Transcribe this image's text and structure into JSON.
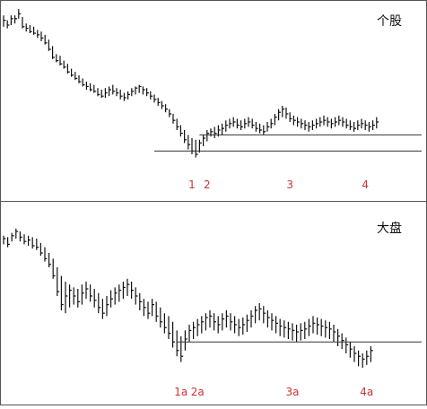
{
  "colors": {
    "price": "#111111",
    "frame": "#555555",
    "reference_line": "#333333",
    "label": "#cc3333"
  },
  "chart_data": [
    {
      "type": "ohlc",
      "title": "个股",
      "x_axis": "bar index (unlabeled)",
      "y_axis": "price (unlabeled, relative 0-100)",
      "ylim": [
        0,
        100
      ],
      "bars": [
        [
          10,
          96,
          89,
          93
        ],
        [
          11,
          93,
          88,
          90
        ],
        [
          12,
          96,
          90,
          94
        ],
        [
          13,
          96,
          91,
          94
        ],
        [
          14,
          100,
          94,
          97
        ],
        [
          15,
          95,
          88,
          89
        ],
        [
          16,
          91,
          86,
          88
        ],
        [
          17,
          90,
          85,
          86
        ],
        [
          18,
          89,
          84,
          85
        ],
        [
          19,
          87,
          82,
          84
        ],
        [
          20,
          86,
          80,
          82
        ],
        [
          21,
          84,
          78,
          79
        ],
        [
          22,
          81,
          74,
          75
        ],
        [
          23,
          77,
          69,
          70
        ],
        [
          24,
          72,
          67,
          68
        ],
        [
          25,
          71,
          65,
          66
        ],
        [
          26,
          68,
          63,
          64
        ],
        [
          27,
          66,
          60,
          61
        ],
        [
          28,
          63,
          58,
          59
        ],
        [
          29,
          61,
          56,
          57
        ],
        [
          30,
          59,
          54,
          55
        ],
        [
          31,
          57,
          52,
          53
        ],
        [
          32,
          55,
          50,
          52
        ],
        [
          33,
          54,
          49,
          50
        ],
        [
          34,
          53,
          48,
          49
        ],
        [
          35,
          51,
          46,
          47
        ],
        [
          36,
          50,
          45,
          46
        ],
        [
          37,
          51,
          45,
          48
        ],
        [
          38,
          52,
          46,
          50
        ],
        [
          39,
          53,
          47,
          49
        ],
        [
          40,
          51,
          46,
          48
        ],
        [
          41,
          50,
          44,
          46
        ],
        [
          42,
          48,
          43,
          45
        ],
        [
          43,
          49,
          44,
          47
        ],
        [
          44,
          51,
          46,
          49
        ],
        [
          45,
          52,
          47,
          51
        ],
        [
          46,
          53,
          48,
          52
        ],
        [
          47,
          52,
          47,
          50
        ],
        [
          48,
          51,
          46,
          48
        ],
        [
          49,
          49,
          44,
          46
        ],
        [
          50,
          47,
          42,
          44
        ],
        [
          51,
          45,
          40,
          42
        ],
        [
          52,
          43,
          38,
          40
        ],
        [
          53,
          41,
          36,
          38
        ],
        [
          54,
          38,
          33,
          35
        ],
        [
          55,
          35,
          29,
          31
        ],
        [
          56,
          32,
          25,
          27
        ],
        [
          57,
          28,
          21,
          23
        ],
        [
          58,
          25,
          17,
          19
        ],
        [
          59,
          22,
          13,
          16
        ],
        [
          60,
          20,
          10,
          12
        ],
        [
          61,
          19,
          8,
          10
        ],
        [
          62,
          19,
          11,
          17
        ],
        [
          63,
          22,
          15,
          20
        ],
        [
          64,
          25,
          18,
          23
        ],
        [
          65,
          26,
          21,
          24
        ],
        [
          66,
          27,
          20,
          23
        ],
        [
          67,
          28,
          21,
          25
        ],
        [
          68,
          29,
          22,
          26
        ],
        [
          69,
          31,
          24,
          28
        ],
        [
          70,
          32,
          26,
          29
        ],
        [
          71,
          33,
          27,
          30
        ],
        [
          72,
          32,
          26,
          28
        ],
        [
          73,
          31,
          25,
          27
        ],
        [
          74,
          32,
          26,
          29
        ],
        [
          75,
          33,
          27,
          30
        ],
        [
          76,
          32,
          26,
          28
        ],
        [
          77,
          30,
          24,
          26
        ],
        [
          78,
          29,
          23,
          25
        ],
        [
          79,
          28,
          22,
          24
        ],
        [
          80,
          30,
          24,
          27
        ],
        [
          81,
          32,
          26,
          29
        ],
        [
          82,
          35,
          28,
          33
        ],
        [
          83,
          38,
          31,
          36
        ],
        [
          84,
          40,
          33,
          38
        ],
        [
          85,
          39,
          32,
          35
        ],
        [
          86,
          36,
          30,
          32
        ],
        [
          87,
          34,
          28,
          31
        ],
        [
          88,
          33,
          27,
          30
        ],
        [
          89,
          32,
          26,
          29
        ],
        [
          90,
          31,
          25,
          28
        ],
        [
          91,
          30,
          24,
          27
        ],
        [
          92,
          31,
          25,
          28
        ],
        [
          93,
          32,
          26,
          29
        ],
        [
          94,
          33,
          27,
          30
        ],
        [
          95,
          34,
          28,
          31
        ],
        [
          96,
          33,
          27,
          30
        ],
        [
          97,
          32,
          26,
          29
        ],
        [
          98,
          33,
          27,
          30
        ],
        [
          99,
          34,
          28,
          31
        ],
        [
          100,
          33,
          27,
          30
        ],
        [
          101,
          32,
          26,
          28
        ],
        [
          102,
          31,
          25,
          27
        ],
        [
          103,
          30,
          24,
          26
        ],
        [
          104,
          31,
          25,
          28
        ],
        [
          105,
          32,
          26,
          29
        ],
        [
          106,
          31,
          25,
          28
        ],
        [
          107,
          30,
          24,
          27
        ],
        [
          108,
          31,
          25,
          28
        ],
        [
          109,
          33,
          26,
          30
        ]
      ],
      "reference_lines": [
        {
          "level": 12,
          "from_bar": 50,
          "to_bar": 110
        },
        {
          "level": 22,
          "from_bar": 62,
          "to_bar": 110
        }
      ],
      "annotations": [
        {
          "text": "1",
          "bar": 60
        },
        {
          "text": "2",
          "bar": 64
        },
        {
          "text": "3",
          "bar": 86
        },
        {
          "text": "4",
          "bar": 106
        }
      ]
    },
    {
      "type": "ohlc",
      "title": "大盘",
      "x_axis": "bar index (unlabeled)",
      "y_axis": "price (unlabeled, relative 0-100)",
      "ylim": [
        0,
        100
      ],
      "bars": [
        [
          10,
          92,
          86,
          90
        ],
        [
          11,
          91,
          84,
          86
        ],
        [
          12,
          94,
          88,
          92
        ],
        [
          13,
          97,
          90,
          95
        ],
        [
          14,
          95,
          88,
          91
        ],
        [
          15,
          93,
          86,
          88
        ],
        [
          16,
          92,
          85,
          89
        ],
        [
          17,
          91,
          83,
          85
        ],
        [
          18,
          90,
          82,
          84
        ],
        [
          19,
          87,
          78,
          80
        ],
        [
          20,
          84,
          74,
          76
        ],
        [
          21,
          80,
          70,
          72
        ],
        [
          22,
          76,
          62,
          64
        ],
        [
          23,
          70,
          50,
          53
        ],
        [
          24,
          64,
          40,
          44
        ],
        [
          25,
          60,
          38,
          50
        ],
        [
          26,
          58,
          42,
          54
        ],
        [
          27,
          56,
          44,
          50
        ],
        [
          28,
          55,
          42,
          46
        ],
        [
          29,
          58,
          44,
          52
        ],
        [
          30,
          60,
          48,
          55
        ],
        [
          31,
          58,
          46,
          50
        ],
        [
          32,
          55,
          42,
          47
        ],
        [
          33,
          52,
          38,
          42
        ],
        [
          34,
          48,
          34,
          38
        ],
        [
          35,
          50,
          36,
          44
        ],
        [
          36,
          54,
          42,
          48
        ],
        [
          37,
          56,
          44,
          52
        ],
        [
          38,
          58,
          46,
          54
        ],
        [
          39,
          60,
          48,
          56
        ],
        [
          40,
          62,
          50,
          58
        ],
        [
          41,
          60,
          48,
          54
        ],
        [
          42,
          56,
          44,
          50
        ],
        [
          43,
          52,
          40,
          46
        ],
        [
          44,
          48,
          36,
          42
        ],
        [
          45,
          46,
          34,
          38
        ],
        [
          46,
          48,
          36,
          44
        ],
        [
          47,
          46,
          32,
          36
        ],
        [
          48,
          42,
          28,
          32
        ],
        [
          49,
          38,
          24,
          28
        ],
        [
          50,
          36,
          20,
          24
        ],
        [
          51,
          32,
          14,
          18
        ],
        [
          52,
          26,
          8,
          12
        ],
        [
          53,
          22,
          4,
          8
        ],
        [
          54,
          26,
          12,
          20
        ],
        [
          55,
          30,
          18,
          26
        ],
        [
          56,
          32,
          20,
          28
        ],
        [
          57,
          34,
          22,
          30
        ],
        [
          58,
          36,
          24,
          32
        ],
        [
          59,
          38,
          26,
          35
        ],
        [
          60,
          40,
          28,
          36
        ],
        [
          61,
          38,
          26,
          32
        ],
        [
          62,
          36,
          24,
          30
        ],
        [
          63,
          38,
          26,
          34
        ],
        [
          64,
          40,
          28,
          36
        ],
        [
          65,
          38,
          26,
          32
        ],
        [
          66,
          36,
          24,
          30
        ],
        [
          67,
          34,
          22,
          28
        ],
        [
          68,
          35,
          23,
          30
        ],
        [
          69,
          37,
          25,
          33
        ],
        [
          70,
          40,
          28,
          36
        ],
        [
          71,
          43,
          31,
          40
        ],
        [
          72,
          45,
          33,
          41
        ],
        [
          73,
          43,
          31,
          38
        ],
        [
          74,
          40,
          28,
          35
        ],
        [
          75,
          38,
          26,
          33
        ],
        [
          76,
          36,
          24,
          31
        ],
        [
          77,
          34,
          22,
          29
        ],
        [
          78,
          33,
          21,
          28
        ],
        [
          79,
          32,
          20,
          27
        ],
        [
          80,
          31,
          19,
          26
        ],
        [
          81,
          30,
          18,
          25
        ],
        [
          82,
          31,
          19,
          26
        ],
        [
          83,
          32,
          20,
          27
        ],
        [
          84,
          34,
          22,
          29
        ],
        [
          85,
          36,
          24,
          31
        ],
        [
          86,
          35,
          23,
          30
        ],
        [
          87,
          34,
          22,
          29
        ],
        [
          88,
          33,
          21,
          28
        ],
        [
          89,
          32,
          20,
          27
        ],
        [
          90,
          30,
          18,
          25
        ],
        [
          91,
          27,
          15,
          22
        ],
        [
          92,
          24,
          13,
          19
        ],
        [
          93,
          21,
          10,
          16
        ],
        [
          94,
          18,
          7,
          13
        ],
        [
          95,
          15,
          4,
          10
        ],
        [
          96,
          12,
          1,
          8
        ],
        [
          97,
          10,
          0,
          6
        ],
        [
          98,
          12,
          2,
          8
        ],
        [
          99,
          15,
          4,
          12
        ]
      ],
      "reference_lines": [
        {
          "level": 18,
          "from_bar": 52,
          "to_bar": 110
        }
      ],
      "annotations": [
        {
          "text": "1a",
          "bar": 53
        },
        {
          "text": "2a",
          "bar": 57
        },
        {
          "text": "3a",
          "bar": 80
        },
        {
          "text": "4a",
          "bar": 98
        }
      ]
    }
  ]
}
